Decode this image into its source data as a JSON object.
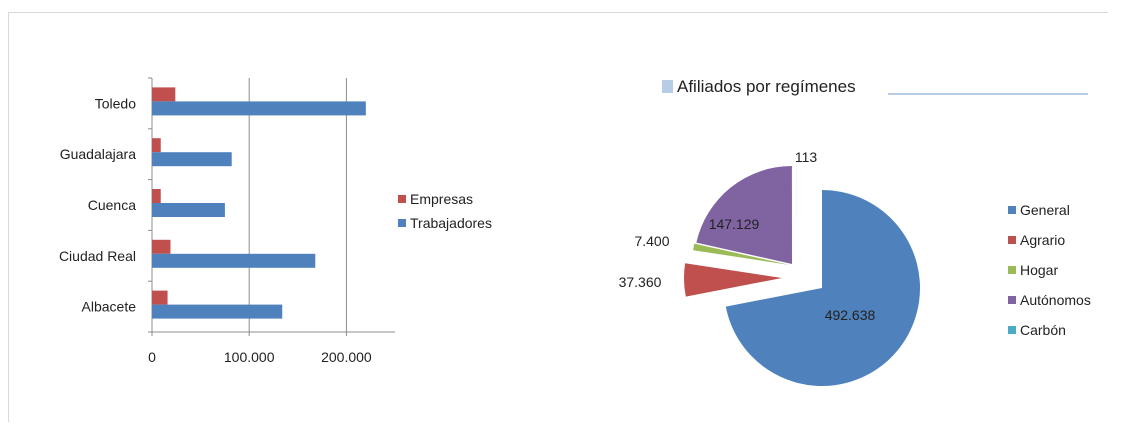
{
  "chart_data": [
    {
      "type": "bar",
      "orientation": "horizontal",
      "categories": [
        "Toledo",
        "Guadalajara",
        "Cuenca",
        "Ciudad Real",
        "Albacete"
      ],
      "series": [
        {
          "name": "Empresas",
          "values": [
            24000,
            9000,
            9000,
            19000,
            16000
          ],
          "color": "#c0504d"
        },
        {
          "name": "Trabajadores",
          "values": [
            220000,
            82000,
            75000,
            168000,
            134000
          ],
          "color": "#4f81bd"
        }
      ],
      "xticks": [
        0,
        100000,
        200000
      ],
      "xtick_labels": [
        "0",
        "100.000",
        "200.000"
      ],
      "xlim": [
        0,
        250000
      ],
      "grid": true,
      "legend": "right"
    },
    {
      "type": "pie",
      "title": "Afiliados por regímenes",
      "slices": [
        {
          "name": "General",
          "value": 492638,
          "label": "492.638",
          "color": "#4f81bd"
        },
        {
          "name": "Agrario",
          "value": 37360,
          "label": "37.360",
          "color": "#c0504d"
        },
        {
          "name": "Hogar",
          "value": 7400,
          "label": "7.400",
          "color": "#9bbb59"
        },
        {
          "name": "Autónomos",
          "value": 147129,
          "label": "147.129",
          "color": "#8064a2"
        },
        {
          "name": "Carbón",
          "value": 113,
          "label": "113",
          "color": "#4bacc6"
        }
      ],
      "exploded": true,
      "legend": "right"
    }
  ]
}
